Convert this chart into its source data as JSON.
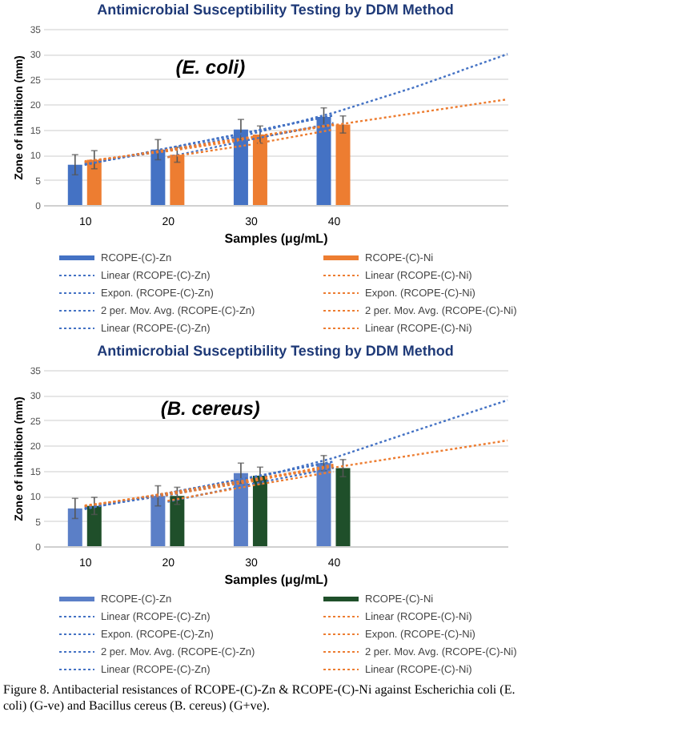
{
  "chart_data": [
    {
      "type": "bar",
      "title": "Antimicrobial Susceptibility Testing by DDM Method",
      "xlabel": "Samples (μg/mL)",
      "ylabel": "Zone of inhibition (mm)",
      "annotations": [
        "(E. coli)"
      ],
      "x": [
        10,
        20,
        30,
        40
      ],
      "xlim": [
        5,
        61
      ],
      "xticks": [
        10,
        20,
        30,
        40
      ],
      "ylim": [
        0,
        35
      ],
      "yticks": [
        0,
        5,
        10,
        15,
        20,
        25,
        30,
        35
      ],
      "grid": "y",
      "legend": "bottom",
      "line_style": "dotted",
      "series": [
        {
          "name": "RCOPE-(C)-Zn",
          "color": "#4472c4",
          "values": [
            8,
            11,
            15,
            17.5
          ],
          "errors": [
            2,
            2,
            2,
            1.8
          ]
        },
        {
          "name": "RCOPE-(C)-Ni",
          "color": "#ed7d31",
          "values": [
            9,
            10,
            14,
            16
          ],
          "errors": [
            1.8,
            1.5,
            1.7,
            1.7
          ]
        },
        {
          "name": "Linear (RCOPE-(C)-Zn)",
          "type": "line",
          "color": "#4472c4",
          "x": [
            10,
            40
          ],
          "values": [
            8,
            17.8
          ]
        },
        {
          "name": "Linear (RCOPE-(C)-Ni)",
          "type": "line",
          "color": "#ed7d31",
          "x": [
            10,
            61
          ],
          "values": [
            8.5,
            21
          ]
        },
        {
          "name": "Expon. (RCOPE-(C)-Zn)",
          "type": "line",
          "color": "#4472c4",
          "x": [
            10,
            20,
            30,
            40,
            50,
            61
          ],
          "values": [
            8.3,
            10.8,
            14.1,
            18.3,
            23.5,
            30
          ]
        },
        {
          "name": "Expon. (RCOPE-(C)-Ni)",
          "type": "line",
          "color": "#ed7d31",
          "x": [
            10,
            20,
            30,
            40
          ],
          "values": [
            8.7,
            10.7,
            13.1,
            16.1
          ]
        },
        {
          "name": "2 per. Mov. Avg. (RCOPE-(C)-Zn)",
          "type": "line",
          "color": "#4472c4",
          "x": [
            20,
            30,
            40
          ],
          "values": [
            9.5,
            13,
            16.3
          ]
        },
        {
          "name": "2 per. Mov. Avg. (RCOPE-(C)-Ni)",
          "type": "line",
          "color": "#ed7d31",
          "x": [
            20,
            30,
            40
          ],
          "values": [
            9.5,
            12,
            15
          ]
        },
        {
          "name": "Linear (RCOPE-(C)-Zn)",
          "type": "line",
          "color": "#4472c4",
          "x": [
            10,
            40
          ],
          "values": [
            8,
            17.8
          ]
        },
        {
          "name": "Linear (RCOPE-(C)-Ni)",
          "type": "line",
          "color": "#ed7d31",
          "x": [
            10,
            40
          ],
          "values": [
            8.5,
            16
          ]
        }
      ]
    },
    {
      "type": "bar",
      "title": "Antimicrobial Susceptibility Testing by DDM Method",
      "xlabel": "Samples (μg/mL)",
      "ylabel": "Zone of inhibition (mm)",
      "annotations": [
        "(B. cereus)",
        "Figure 8. Antibacterial resistances of RCOPE-(C)-Zn & RCOPE-(C)-Ni against Escherichia coli (E. coli) (G-ve) and Bacillus cereus (B. cereus) (G+ve)."
      ],
      "x": [
        10,
        20,
        30,
        40
      ],
      "xlim": [
        5,
        61
      ],
      "xticks": [
        10,
        20,
        30,
        40
      ],
      "ylim": [
        0,
        35
      ],
      "yticks": [
        0,
        5,
        10,
        15,
        20,
        25,
        30,
        35
      ],
      "grid": "y",
      "legend": "bottom",
      "line_style": "dotted",
      "series": [
        {
          "name": "RCOPE-(C)-Zn",
          "color": "#5b7fc7",
          "values": [
            7.5,
            10,
            14.5,
            16.5
          ],
          "errors": [
            2,
            2,
            2,
            1.5
          ]
        },
        {
          "name": "RCOPE-(C)-Ni",
          "color": "#1f4f2a",
          "values": [
            8,
            10,
            14,
            15.5
          ],
          "errors": [
            1.7,
            1.7,
            1.7,
            1.7
          ]
        },
        {
          "name": "Linear (RCOPE-(C)-Zn)",
          "type": "line",
          "color": "#4472c4",
          "x": [
            10,
            40
          ],
          "values": [
            7.4,
            16.8
          ]
        },
        {
          "name": "Linear (RCOPE-(C)-Ni)",
          "type": "line",
          "color": "#ed7d31",
          "x": [
            10,
            61
          ],
          "values": [
            7.9,
            21
          ]
        },
        {
          "name": "Expon. (RCOPE-(C)-Zn)",
          "type": "line",
          "color": "#4472c4",
          "x": [
            10,
            20,
            30,
            40,
            50,
            61
          ],
          "values": [
            7.7,
            10.1,
            13.3,
            17.5,
            23,
            29
          ]
        },
        {
          "name": "Expon. (RCOPE-(C)-Ni)",
          "type": "line",
          "color": "#ed7d31",
          "x": [
            10,
            20,
            30,
            40
          ],
          "values": [
            8.1,
            10.2,
            12.8,
            16.2
          ]
        },
        {
          "name": "2 per. Mov. Avg. (RCOPE-(C)-Zn)",
          "type": "line",
          "color": "#4472c4",
          "x": [
            20,
            30,
            40
          ],
          "values": [
            8.8,
            12.3,
            15.5
          ]
        },
        {
          "name": "2 per. Mov. Avg. (RCOPE-(C)-Ni)",
          "type": "line",
          "color": "#ed7d31",
          "x": [
            20,
            30,
            40
          ],
          "values": [
            9,
            12,
            14.8
          ]
        },
        {
          "name": "Linear (RCOPE-(C)-Zn)",
          "type": "line",
          "color": "#4472c4",
          "x": [
            10,
            40
          ],
          "values": [
            7.4,
            16.8
          ]
        },
        {
          "name": "Linear (RCOPE-(C)-Ni)",
          "type": "line",
          "color": "#ed7d31",
          "x": [
            10,
            40
          ],
          "values": [
            7.9,
            15.9
          ]
        }
      ]
    }
  ]
}
